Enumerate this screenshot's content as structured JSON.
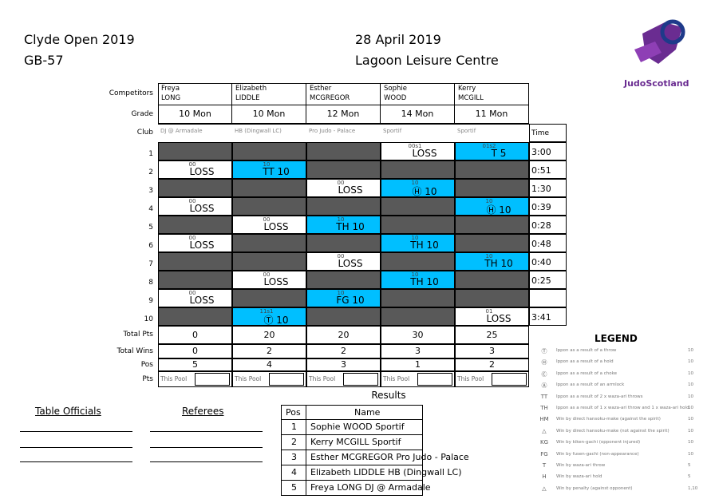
{
  "header": {
    "event": "Clyde Open 2019",
    "code": "GB-57",
    "date": "28 April 2019",
    "venue": "Lagoon Leisure Centre",
    "logo": "JudoScotland"
  },
  "pool": {
    "labels": {
      "competitors": "Competitors",
      "grade": "Grade",
      "club": "Club",
      "time": "Time",
      "total_pts": "Total Pts",
      "total_wins": "Total Wins",
      "pos": "Pos",
      "pts": "Pts"
    },
    "competitors": [
      {
        "first": "Freya",
        "last": "LONG",
        "grade": "10 Mon",
        "club": "DJ @ Armadale",
        "total_pts": 0,
        "total_wins": 0,
        "pos": 5,
        "pts": "This Pool"
      },
      {
        "first": "Elizabeth",
        "last": "LIDDLE",
        "grade": "10 Mon",
        "club": "HB (Dingwall LC)",
        "total_pts": 20,
        "total_wins": 2,
        "pos": 4,
        "pts": "This Pool"
      },
      {
        "first": "Esther",
        "last": "MCGREGOR",
        "grade": "12 Mon",
        "club": "Pro Judo - Palace",
        "total_pts": 20,
        "total_wins": 2,
        "pos": 3,
        "pts": "This Pool"
      },
      {
        "first": "Sophie",
        "last": "WOOD",
        "grade": "14 Mon",
        "club": "Sportif",
        "total_pts": 30,
        "total_wins": 3,
        "pos": 1,
        "pts": "This Pool"
      },
      {
        "first": "Kerry",
        "last": "MCGILL",
        "grade": "11 Mon",
        "club": "Sportif",
        "total_pts": 25,
        "total_wins": 3,
        "pos": 2,
        "pts": "This Pool"
      }
    ],
    "bouts": [
      {
        "number": 1,
        "time": "3:00",
        "cells": [
          null,
          null,
          null,
          {
            "score": "00s1",
            "result": "LOSS",
            "win": false
          },
          {
            "score": "01s2",
            "result": "T 5",
            "win": true
          }
        ]
      },
      {
        "number": 2,
        "time": "0:51",
        "cells": [
          {
            "score": "00",
            "result": "LOSS",
            "win": false
          },
          {
            "score": "10",
            "result": "TT 10",
            "win": true
          },
          null,
          null,
          null
        ]
      },
      {
        "number": 3,
        "time": "1:30",
        "cells": [
          null,
          null,
          {
            "score": "00",
            "result": "LOSS",
            "win": false
          },
          {
            "score": "10",
            "result": "Ⓗ 10",
            "win": true
          },
          null
        ]
      },
      {
        "number": 4,
        "time": "0:39",
        "cells": [
          {
            "score": "00",
            "result": "LOSS",
            "win": false
          },
          null,
          null,
          null,
          {
            "score": "10",
            "result": "Ⓗ 10",
            "win": true
          }
        ]
      },
      {
        "number": 5,
        "time": "0:28",
        "cells": [
          null,
          {
            "score": "00",
            "result": "LOSS",
            "win": false
          },
          {
            "score": "10",
            "result": "TH 10",
            "win": true
          },
          null,
          null
        ]
      },
      {
        "number": 6,
        "time": "0:48",
        "cells": [
          {
            "score": "00",
            "result": "LOSS",
            "win": false
          },
          null,
          null,
          {
            "score": "10",
            "result": "TH 10",
            "win": true
          },
          null
        ]
      },
      {
        "number": 7,
        "time": "0:40",
        "cells": [
          null,
          null,
          {
            "score": "00",
            "result": "LOSS",
            "win": false
          },
          null,
          {
            "score": "10",
            "result": "TH 10",
            "win": true
          }
        ]
      },
      {
        "number": 8,
        "time": "0:25",
        "cells": [
          null,
          {
            "score": "00",
            "result": "LOSS",
            "win": false
          },
          null,
          {
            "score": "10",
            "result": "TH 10",
            "win": true
          },
          null
        ]
      },
      {
        "number": 9,
        "time": null,
        "cells": [
          {
            "score": "00",
            "result": "LOSS",
            "win": false
          },
          null,
          {
            "score": "10",
            "result": "FG 10",
            "win": true
          },
          null,
          null
        ]
      },
      {
        "number": 10,
        "time": "3:41",
        "cells": [
          null,
          {
            "score": "11s1",
            "result": "Ⓣ 10",
            "win": true
          },
          null,
          null,
          {
            "score": "01",
            "result": "LOSS",
            "win": false
          }
        ]
      }
    ]
  },
  "results": {
    "title": "Results",
    "headers": [
      "Pos",
      "Name"
    ],
    "rows": [
      [
        1,
        "Sophie WOOD Sportif"
      ],
      [
        2,
        "Kerry MCGILL Sportif"
      ],
      [
        3,
        "Esther MCGREGOR Pro Judo - Palace"
      ],
      [
        4,
        "Elizabeth LIDDLE HB (Dingwall LC)"
      ],
      [
        5,
        "Freya LONG DJ @ Armadale"
      ]
    ]
  },
  "officials": {
    "table": "Table Officials",
    "referees": "Referees"
  },
  "legend": {
    "title": "LEGEND",
    "items": [
      {
        "symbol": "Ⓣ",
        "text": "Ippon as a result of a throw",
        "points": "10"
      },
      {
        "symbol": "Ⓗ",
        "text": "Ippon as a result of a hold",
        "points": "10"
      },
      {
        "symbol": "Ⓒ",
        "text": "Ippon as a result of a choke",
        "points": "10"
      },
      {
        "symbol": "Ⓐ",
        "text": "Ippon as a result of an armlock",
        "points": "10"
      },
      {
        "symbol": "TT",
        "text": "Ippon as a result of 2 x waza-ari throws",
        "points": "10"
      },
      {
        "symbol": "TH",
        "text": "Ippon as a result of 1 x waza-ari throw and 1 x waza-ari hold",
        "points": "10"
      },
      {
        "symbol": "HM",
        "text": "Win by direct hansoku-make (against the spirit)",
        "points": "10"
      },
      {
        "symbol": "△",
        "text": "Win by direct hansoku-make (not against the spirit)",
        "points": "10"
      },
      {
        "symbol": "KG",
        "text": "Win by kiken-gachi (opponent injured)",
        "points": "10"
      },
      {
        "symbol": "FG",
        "text": "Win by fusen-gachi (non-appearance)",
        "points": "10"
      },
      {
        "symbol": "T",
        "text": "Win by waza-ari throw",
        "points": "5"
      },
      {
        "symbol": "H",
        "text": "Win by waza-ari hold",
        "points": "5"
      },
      {
        "symbol": "△",
        "text": "Win by penalty (against opponent)",
        "points": "1,10"
      }
    ]
  }
}
